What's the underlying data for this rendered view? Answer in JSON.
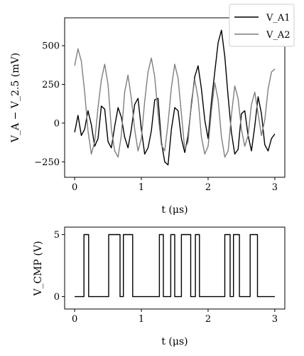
{
  "chart_data": [
    {
      "type": "line",
      "xlabel": "t (μs)",
      "ylabel": "V_A − V_2.5 (mV)",
      "xlim": [
        -0.15,
        3.15
      ],
      "ylim": [
        -350,
        680
      ],
      "xticks": [
        "0",
        "1",
        "2",
        "3"
      ],
      "yticks": [
        "−250",
        "0",
        "250",
        "500"
      ],
      "xtick_values": [
        0,
        1,
        2,
        3
      ],
      "ytick_values": [
        -250,
        0,
        250,
        500
      ],
      "legend_placement": "top-right",
      "grid": false,
      "series": [
        {
          "name": "V_A1",
          "color": "#000000",
          "x": [
            0.0,
            0.05,
            0.1,
            0.15,
            0.2,
            0.25,
            0.3,
            0.35,
            0.4,
            0.45,
            0.5,
            0.55,
            0.6,
            0.65,
            0.7,
            0.75,
            0.8,
            0.85,
            0.9,
            0.95,
            1.0,
            1.05,
            1.1,
            1.15,
            1.2,
            1.25,
            1.3,
            1.35,
            1.4,
            1.45,
            1.5,
            1.55,
            1.6,
            1.65,
            1.7,
            1.75,
            1.8,
            1.85,
            1.9,
            1.95,
            2.0,
            2.05,
            2.1,
            2.15,
            2.2,
            2.25,
            2.3,
            2.35,
            2.4,
            2.45,
            2.5,
            2.55,
            2.6,
            2.65,
            2.7,
            2.75,
            2.8,
            2.85,
            2.9,
            2.95,
            3.0
          ],
          "y": [
            -60,
            50,
            -80,
            -40,
            80,
            -10,
            -150,
            -100,
            110,
            90,
            -120,
            -160,
            -20,
            100,
            40,
            -90,
            -160,
            -40,
            120,
            160,
            -40,
            -200,
            -160,
            -50,
            150,
            160,
            -120,
            -250,
            -270,
            -40,
            100,
            80,
            -100,
            -190,
            -80,
            120,
            300,
            370,
            220,
            20,
            -100,
            140,
            330,
            520,
            600,
            430,
            170,
            -60,
            -200,
            -170,
            60,
            80,
            -80,
            -180,
            -20,
            170,
            60,
            -140,
            -180,
            -100,
            -70
          ]
        },
        {
          "name": "V_A2",
          "color": "#7f7f7f",
          "x": [
            0.0,
            0.05,
            0.1,
            0.15,
            0.2,
            0.25,
            0.3,
            0.35,
            0.4,
            0.45,
            0.5,
            0.55,
            0.6,
            0.65,
            0.7,
            0.75,
            0.8,
            0.85,
            0.9,
            0.95,
            1.0,
            1.05,
            1.1,
            1.15,
            1.2,
            1.25,
            1.3,
            1.35,
            1.4,
            1.45,
            1.5,
            1.55,
            1.6,
            1.65,
            1.7,
            1.75,
            1.8,
            1.85,
            1.9,
            1.95,
            2.0,
            2.05,
            2.1,
            2.15,
            2.2,
            2.25,
            2.3,
            2.35,
            2.4,
            2.45,
            2.5,
            2.55,
            2.6,
            2.65,
            2.7,
            2.75,
            2.8,
            2.85,
            2.9,
            2.95,
            3.0
          ],
          "y": [
            370,
            480,
            400,
            200,
            -50,
            -200,
            -120,
            100,
            280,
            380,
            250,
            -40,
            -180,
            -220,
            -80,
            200,
            310,
            160,
            -40,
            -180,
            -100,
            140,
            330,
            420,
            300,
            60,
            -140,
            -180,
            0,
            230,
            380,
            290,
            60,
            -170,
            -120,
            140,
            280,
            160,
            -90,
            -200,
            -150,
            80,
            260,
            150,
            -90,
            -220,
            -180,
            50,
            240,
            160,
            -40,
            -150,
            -80,
            120,
            200,
            60,
            -80,
            20,
            220,
            330,
            350
          ]
        }
      ]
    },
    {
      "type": "line",
      "xlabel": "t (μs)",
      "ylabel": "V_CMP (V)",
      "xlim": [
        -0.15,
        3.15
      ],
      "ylim": [
        -1.0,
        5.6
      ],
      "xticks": [
        "0",
        "1",
        "2",
        "3"
      ],
      "yticks": [
        "0",
        "5"
      ],
      "xtick_values": [
        0,
        1,
        2,
        3
      ],
      "ytick_values": [
        0,
        5
      ],
      "grid": false,
      "series": [
        {
          "color": "#000000",
          "step": true,
          "x": [
            0.0,
            0.14,
            0.14,
            0.21,
            0.21,
            0.51,
            0.51,
            0.68,
            0.68,
            0.73,
            0.73,
            0.87,
            0.87,
            1.27,
            1.27,
            1.33,
            1.33,
            1.44,
            1.44,
            1.5,
            1.5,
            1.6,
            1.6,
            1.74,
            1.74,
            1.81,
            1.81,
            1.87,
            1.87,
            2.25,
            2.25,
            2.33,
            2.33,
            2.38,
            2.38,
            2.47,
            2.47,
            2.63,
            2.63,
            2.74,
            2.74,
            3.0
          ],
          "y": [
            0,
            0,
            5,
            5,
            0,
            0,
            5,
            5,
            0,
            0,
            5,
            5,
            0,
            0,
            5,
            5,
            0,
            0,
            5,
            5,
            0,
            0,
            5,
            5,
            0,
            0,
            5,
            5,
            0,
            0,
            5,
            5,
            0,
            0,
            5,
            5,
            0,
            0,
            5,
            5,
            0,
            0
          ]
        }
      ]
    }
  ]
}
